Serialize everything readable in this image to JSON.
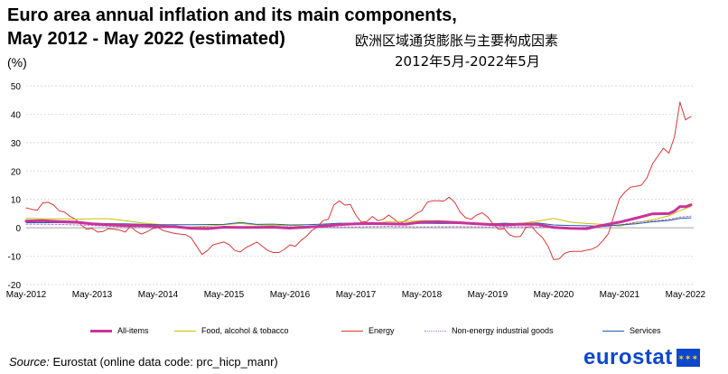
{
  "header": {
    "title_line1": "Euro area annual inflation and its main components,",
    "title_line2": "May 2012 - May 2022 (estimated)",
    "unit": "(%)",
    "cn_line1": "欧洲区域通货膨胀与主要构成因素",
    "cn_line2": "2012年5月-2022年5月"
  },
  "footer": {
    "source_label": "Source:",
    "source_text": "Eurostat (online data code: prc_hicp_manr)",
    "logo_text": "eurostat",
    "flag_icon": "eu-flag-icon"
  },
  "chart_data": {
    "type": "line",
    "ylim": [
      -20,
      50
    ],
    "yticks": [
      -20,
      -10,
      0,
      10,
      20,
      30,
      40,
      50
    ],
    "xlim": [
      0,
      120
    ],
    "x_ticks": [
      {
        "x": 0,
        "label": "May-2012"
      },
      {
        "x": 12,
        "label": "May-2013"
      },
      {
        "x": 24,
        "label": "May-2014"
      },
      {
        "x": 36,
        "label": "May-2015"
      },
      {
        "x": 48,
        "label": "May-2016"
      },
      {
        "x": 60,
        "label": "May-2017"
      },
      {
        "x": 72,
        "label": "May-2018"
      },
      {
        "x": 84,
        "label": "May-2019"
      },
      {
        "x": 96,
        "label": "May-2020"
      },
      {
        "x": 108,
        "label": "May-2021"
      },
      {
        "x": 120,
        "label": "May-2022"
      }
    ],
    "grid": true,
    "legend_position": "bottom",
    "series": [
      {
        "name": "Energy",
        "color": "#d73a3a",
        "width": 1,
        "dash": "",
        "points": [
          [
            0,
            7
          ],
          [
            1,
            6.5
          ],
          [
            2,
            6.2
          ],
          [
            3,
            8.7
          ],
          [
            4,
            9
          ],
          [
            5,
            8
          ],
          [
            6,
            6
          ],
          [
            7,
            5.5
          ],
          [
            8,
            4
          ],
          [
            9,
            3
          ],
          [
            10,
            1
          ],
          [
            11,
            -0.5
          ],
          [
            12,
            -0.2
          ],
          [
            13,
            -1.5
          ],
          [
            14,
            -1.3
          ],
          [
            15,
            -0.3
          ],
          [
            16,
            -0.5
          ],
          [
            17,
            -0.8
          ],
          [
            18,
            -1.5
          ],
          [
            19,
            0.5
          ],
          [
            20,
            -1.2
          ],
          [
            21,
            -2.2
          ],
          [
            22,
            -1.4
          ],
          [
            23,
            -0.3
          ],
          [
            24,
            0
          ],
          [
            25,
            -1
          ],
          [
            26,
            -1.5
          ],
          [
            27,
            -2
          ],
          [
            28,
            -2.2
          ],
          [
            29,
            -2.4
          ],
          [
            30,
            -3.5
          ],
          [
            31,
            -6.4
          ],
          [
            32,
            -9.4
          ],
          [
            33,
            -8
          ],
          [
            34,
            -6
          ],
          [
            35,
            -5.5
          ],
          [
            36,
            -5
          ],
          [
            37,
            -6
          ],
          [
            38,
            -8
          ],
          [
            39,
            -8.5
          ],
          [
            40,
            -7
          ],
          [
            41,
            -6
          ],
          [
            42,
            -5
          ],
          [
            43,
            -6.5
          ],
          [
            44,
            -8
          ],
          [
            45,
            -8.7
          ],
          [
            46,
            -8.7
          ],
          [
            47,
            -7.6
          ],
          [
            48,
            -6
          ],
          [
            49,
            -6.5
          ],
          [
            50,
            -4.5
          ],
          [
            51,
            -3
          ],
          [
            52,
            -0.9
          ],
          [
            53,
            0.2
          ],
          [
            54,
            2.5
          ],
          [
            55,
            3
          ],
          [
            56,
            8
          ],
          [
            57,
            9.5
          ],
          [
            58,
            8
          ],
          [
            59,
            8.2
          ],
          [
            60,
            4.5
          ],
          [
            61,
            2
          ],
          [
            62,
            2.2
          ],
          [
            63,
            4
          ],
          [
            64,
            2.5
          ],
          [
            65,
            3
          ],
          [
            66,
            4.5
          ],
          [
            67,
            3
          ],
          [
            68,
            1.5
          ],
          [
            69,
            2.5
          ],
          [
            70,
            3.5
          ],
          [
            71,
            5
          ],
          [
            72,
            6
          ],
          [
            73,
            9
          ],
          [
            74,
            9.5
          ],
          [
            75,
            9.5
          ],
          [
            76,
            9.4
          ],
          [
            77,
            10.8
          ],
          [
            78,
            9
          ],
          [
            79,
            5.5
          ],
          [
            80,
            3.5
          ],
          [
            81,
            3
          ],
          [
            82,
            4.5
          ],
          [
            83,
            5.3
          ],
          [
            84,
            3.8
          ],
          [
            85,
            1.3
          ],
          [
            86,
            -0.6
          ],
          [
            87,
            -0.3
          ],
          [
            88,
            -2.5
          ],
          [
            89,
            -3.2
          ],
          [
            90,
            -3
          ],
          [
            91,
            0.2
          ],
          [
            92,
            0.5
          ],
          [
            93,
            -1.8
          ],
          [
            94,
            -3.5
          ],
          [
            95,
            -6.5
          ],
          [
            96,
            -11.2
          ],
          [
            97,
            -11
          ],
          [
            98,
            -9
          ],
          [
            99,
            -8.4
          ],
          [
            100,
            -8.3
          ],
          [
            101,
            -8.3
          ],
          [
            102,
            -7.9
          ],
          [
            103,
            -7.5
          ],
          [
            104,
            -6.5
          ],
          [
            105,
            -4.5
          ],
          [
            106,
            -2
          ],
          [
            107,
            4.3
          ],
          [
            108,
            10.3
          ],
          [
            109,
            12.6
          ],
          [
            110,
            14.3
          ],
          [
            111,
            14.6
          ],
          [
            112,
            15
          ],
          [
            113,
            17.6
          ],
          [
            114,
            22.5
          ],
          [
            115,
            25.3
          ],
          [
            116,
            28
          ],
          [
            117,
            26.3
          ],
          [
            118,
            32
          ],
          [
            119,
            44.3
          ],
          [
            120,
            38
          ],
          [
            121,
            39.2
          ]
        ]
      },
      {
        "name": "Food, alcohol & tobacco",
        "color": "#c9c000",
        "width": 1,
        "dash": "",
        "points": [
          [
            0,
            3.4
          ],
          [
            3,
            3.2
          ],
          [
            6,
            3.2
          ],
          [
            9,
            3.0
          ],
          [
            12,
            3.2
          ],
          [
            15,
            3.2
          ],
          [
            18,
            2.5
          ],
          [
            21,
            1.7
          ],
          [
            24,
            1.2
          ],
          [
            27,
            0.3
          ],
          [
            30,
            0.3
          ],
          [
            33,
            0.6
          ],
          [
            36,
            1.1
          ],
          [
            39,
            1.5
          ],
          [
            42,
            1.0
          ],
          [
            45,
            0.8
          ],
          [
            48,
            0.9
          ],
          [
            51,
            0.5
          ],
          [
            54,
            0.7
          ],
          [
            57,
            1.2
          ],
          [
            60,
            1.5
          ],
          [
            63,
            1.4
          ],
          [
            66,
            2.2
          ],
          [
            69,
            2.2
          ],
          [
            72,
            2.5
          ],
          [
            75,
            2.5
          ],
          [
            78,
            2.2
          ],
          [
            81,
            1.8
          ],
          [
            84,
            1.5
          ],
          [
            87,
            1.5
          ],
          [
            90,
            1.5
          ],
          [
            93,
            2.3
          ],
          [
            96,
            3.3
          ],
          [
            99,
            2.0
          ],
          [
            102,
            1.5
          ],
          [
            105,
            1.2
          ],
          [
            108,
            0.6
          ],
          [
            111,
            1.8
          ],
          [
            114,
            2.8
          ],
          [
            117,
            4.2
          ],
          [
            119,
            6.0
          ],
          [
            121,
            7.5
          ]
        ]
      },
      {
        "name": "Non-energy industrial goods",
        "color": "#b96ec9",
        "width": 1,
        "dash": "2,2",
        "points": [
          [
            0,
            1.3
          ],
          [
            6,
            1.2
          ],
          [
            12,
            0.8
          ],
          [
            18,
            0.3
          ],
          [
            24,
            0.0
          ],
          [
            30,
            0.3
          ],
          [
            36,
            0.2
          ],
          [
            42,
            0.5
          ],
          [
            48,
            0.4
          ],
          [
            54,
            0.2
          ],
          [
            60,
            0.3
          ],
          [
            66,
            0.5
          ],
          [
            72,
            0.3
          ],
          [
            78,
            0.4
          ],
          [
            84,
            0.3
          ],
          [
            90,
            0.4
          ],
          [
            96,
            0.2
          ],
          [
            100,
            -0.1
          ],
          [
            104,
            0.5
          ],
          [
            108,
            1.0
          ],
          [
            111,
            2.0
          ],
          [
            114,
            2.4
          ],
          [
            117,
            2.9
          ],
          [
            119,
            3.8
          ],
          [
            121,
            4.1
          ]
        ]
      },
      {
        "name": "Services",
        "color": "#1f5fa8",
        "width": 1,
        "dash": "",
        "points": [
          [
            0,
            1.8
          ],
          [
            6,
            1.8
          ],
          [
            12,
            1.5
          ],
          [
            18,
            1.4
          ],
          [
            24,
            1.1
          ],
          [
            30,
            1.1
          ],
          [
            36,
            1.2
          ],
          [
            39,
            1.9
          ],
          [
            42,
            1.2
          ],
          [
            45,
            1.3
          ],
          [
            48,
            1.0
          ],
          [
            51,
            1.1
          ],
          [
            54,
            1.3
          ],
          [
            57,
            1.6
          ],
          [
            60,
            1.5
          ],
          [
            63,
            1.4
          ],
          [
            66,
            1.6
          ],
          [
            69,
            1.3
          ],
          [
            72,
            1.6
          ],
          [
            75,
            1.5
          ],
          [
            78,
            1.5
          ],
          [
            81,
            1.4
          ],
          [
            84,
            1.3
          ],
          [
            87,
            1.6
          ],
          [
            90,
            1.4
          ],
          [
            93,
            1.7
          ],
          [
            96,
            1.0
          ],
          [
            99,
            0.8
          ],
          [
            102,
            0.7
          ],
          [
            105,
            0.5
          ],
          [
            108,
            1.0
          ],
          [
            111,
            1.4
          ],
          [
            114,
            2.1
          ],
          [
            117,
            2.6
          ],
          [
            119,
            3.3
          ],
          [
            121,
            3.5
          ]
        ]
      },
      {
        "name": "All-items",
        "color": "#c8339b",
        "width": 3,
        "dash": "",
        "points": [
          [
            0,
            2.4
          ],
          [
            3,
            2.5
          ],
          [
            6,
            2.2
          ],
          [
            9,
            2.0
          ],
          [
            12,
            1.4
          ],
          [
            15,
            1.1
          ],
          [
            18,
            0.8
          ],
          [
            21,
            0.8
          ],
          [
            24,
            0.5
          ],
          [
            27,
            0.4
          ],
          [
            30,
            -0.2
          ],
          [
            33,
            -0.3
          ],
          [
            36,
            0.2
          ],
          [
            39,
            0.1
          ],
          [
            42,
            0.1
          ],
          [
            45,
            0.2
          ],
          [
            48,
            -0.1
          ],
          [
            51,
            0.2
          ],
          [
            54,
            0.6
          ],
          [
            57,
            1.1
          ],
          [
            60,
            1.4
          ],
          [
            63,
            1.5
          ],
          [
            66,
            1.4
          ],
          [
            69,
            1.3
          ],
          [
            72,
            2.0
          ],
          [
            75,
            2.1
          ],
          [
            78,
            1.9
          ],
          [
            81,
            1.5
          ],
          [
            84,
            1.2
          ],
          [
            87,
            1.0
          ],
          [
            90,
            1.3
          ],
          [
            93,
            1.2
          ],
          [
            96,
            0.1
          ],
          [
            99,
            -0.2
          ],
          [
            102,
            -0.3
          ],
          [
            105,
            0.9
          ],
          [
            108,
            2.0
          ],
          [
            111,
            3.4
          ],
          [
            114,
            4.9
          ],
          [
            117,
            5.0
          ],
          [
            118,
            5.9
          ],
          [
            119,
            7.5
          ],
          [
            120,
            7.4
          ],
          [
            121,
            8.1
          ]
        ]
      }
    ],
    "legend": [
      {
        "label": "All-items",
        "color": "#c8339b",
        "style": "thick"
      },
      {
        "label": "Food, alcohol & tobacco",
        "color": "#c9c000",
        "style": "solid"
      },
      {
        "label": "Energy",
        "color": "#d73a3a",
        "style": "solid"
      },
      {
        "label": "Non-energy industrial goods",
        "color": "#b96ec9",
        "style": "dotted"
      },
      {
        "label": "Services",
        "color": "#1f5fa8",
        "style": "solid"
      }
    ]
  }
}
